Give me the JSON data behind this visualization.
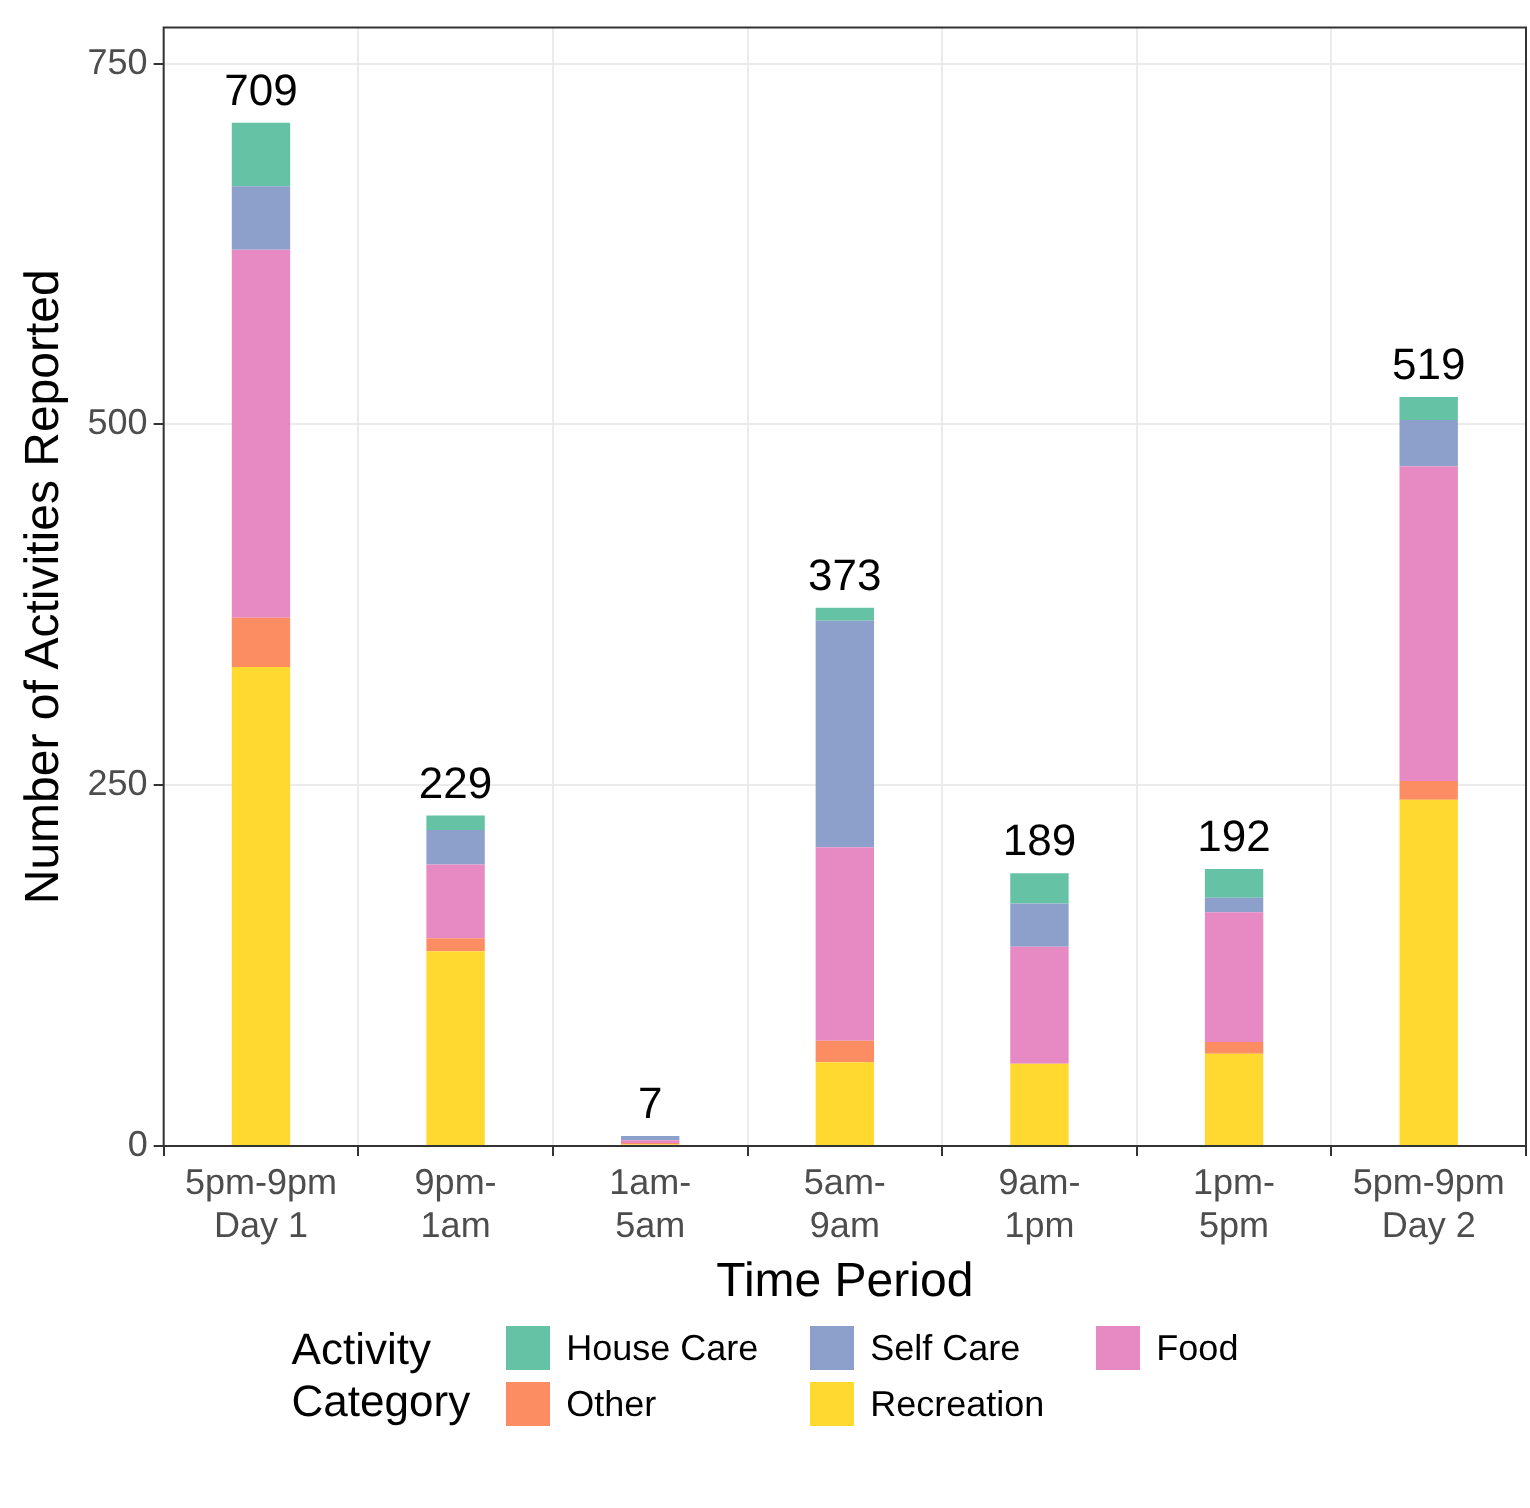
{
  "chart_data": {
    "type": "bar",
    "stacked": true,
    "xlabel": "Time Period",
    "ylabel": "Number of Activities Reported",
    "legend_title": "Activity Category",
    "categories": [
      "5pm-9pm\nDay 1",
      "9pm-\n1am",
      "1am-\n5am",
      "5am-\n9am",
      "9am-\n1pm",
      "1pm-\n5pm",
      "5pm-9pm\nDay 2"
    ],
    "series": [
      {
        "name": "Recreation",
        "color": "#ffd92f",
        "values": [
          332,
          135,
          1,
          58,
          57,
          64,
          240
        ]
      },
      {
        "name": "Other",
        "color": "#fc8d62",
        "values": [
          34,
          9,
          1,
          15,
          0,
          8,
          13
        ]
      },
      {
        "name": "Food",
        "color": "#e78ac3",
        "values": [
          255,
          51,
          2,
          134,
          81,
          90,
          218
        ]
      },
      {
        "name": "Self Care",
        "color": "#8da0cb",
        "values": [
          44,
          24,
          3,
          157,
          30,
          10,
          32
        ]
      },
      {
        "name": "House Care",
        "color": "#66c2a5",
        "values": [
          44,
          10,
          0,
          9,
          21,
          20,
          16
        ]
      }
    ],
    "totals": [
      "709",
      "229",
      "7",
      "373",
      "189",
      "192",
      "519"
    ],
    "ylim": [
      0,
      775
    ],
    "yticks": [
      0,
      250,
      500,
      750
    ],
    "grid": true,
    "legend": "bottom"
  }
}
